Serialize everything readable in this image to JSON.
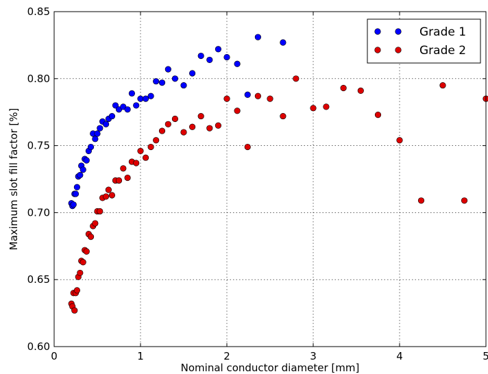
{
  "chart_data": {
    "type": "scatter",
    "title": "",
    "xlabel": "Nominal conductor diameter [mm]",
    "ylabel": "Maximum slot fill factor [%]",
    "xlim": [
      0,
      5
    ],
    "ylim": [
      0.6,
      0.85
    ],
    "xticks": [
      "0",
      "1",
      "2",
      "3",
      "4",
      "5"
    ],
    "yticks": [
      "0.60",
      "0.65",
      "0.70",
      "0.75",
      "0.80",
      "0.85"
    ],
    "grid": true,
    "legend_position": "top-right",
    "series": [
      {
        "name": "Grade 1",
        "color": "#0000ff",
        "points": [
          [
            0.2,
            0.707
          ],
          [
            0.212,
            0.705
          ],
          [
            0.224,
            0.706
          ],
          [
            0.236,
            0.714
          ],
          [
            0.25,
            0.714
          ],
          [
            0.265,
            0.719
          ],
          [
            0.28,
            0.727
          ],
          [
            0.3,
            0.728
          ],
          [
            0.315,
            0.735
          ],
          [
            0.335,
            0.732
          ],
          [
            0.355,
            0.74
          ],
          [
            0.375,
            0.739
          ],
          [
            0.4,
            0.746
          ],
          [
            0.425,
            0.749
          ],
          [
            0.45,
            0.759
          ],
          [
            0.475,
            0.755
          ],
          [
            0.5,
            0.759
          ],
          [
            0.53,
            0.763
          ],
          [
            0.56,
            0.768
          ],
          [
            0.6,
            0.766
          ],
          [
            0.63,
            0.77
          ],
          [
            0.67,
            0.772
          ],
          [
            0.71,
            0.78
          ],
          [
            0.75,
            0.777
          ],
          [
            0.8,
            0.779
          ],
          [
            0.85,
            0.777
          ],
          [
            0.9,
            0.789
          ],
          [
            0.95,
            0.78
          ],
          [
            1.0,
            0.785
          ],
          [
            1.06,
            0.785
          ],
          [
            1.12,
            0.787
          ],
          [
            1.18,
            0.798
          ],
          [
            1.25,
            0.797
          ],
          [
            1.32,
            0.807
          ],
          [
            1.4,
            0.8
          ],
          [
            1.5,
            0.795
          ],
          [
            1.6,
            0.804
          ],
          [
            1.7,
            0.817
          ],
          [
            1.8,
            0.814
          ],
          [
            1.9,
            0.822
          ],
          [
            2.0,
            0.816
          ],
          [
            2.12,
            0.811
          ],
          [
            2.24,
            0.788
          ],
          [
            2.36,
            0.831
          ],
          [
            2.65,
            0.827
          ]
        ]
      },
      {
        "name": "Grade 2",
        "color": "#dd0000",
        "points": [
          [
            0.2,
            0.632
          ],
          [
            0.212,
            0.63
          ],
          [
            0.224,
            0.64
          ],
          [
            0.236,
            0.627
          ],
          [
            0.25,
            0.64
          ],
          [
            0.265,
            0.642
          ],
          [
            0.28,
            0.652
          ],
          [
            0.3,
            0.655
          ],
          [
            0.315,
            0.664
          ],
          [
            0.335,
            0.663
          ],
          [
            0.355,
            0.672
          ],
          [
            0.375,
            0.671
          ],
          [
            0.4,
            0.684
          ],
          [
            0.425,
            0.682
          ],
          [
            0.45,
            0.69
          ],
          [
            0.475,
            0.692
          ],
          [
            0.5,
            0.701
          ],
          [
            0.53,
            0.701
          ],
          [
            0.56,
            0.711
          ],
          [
            0.6,
            0.712
          ],
          [
            0.63,
            0.717
          ],
          [
            0.67,
            0.713
          ],
          [
            0.71,
            0.724
          ],
          [
            0.75,
            0.724
          ],
          [
            0.8,
            0.733
          ],
          [
            0.85,
            0.726
          ],
          [
            0.9,
            0.738
          ],
          [
            0.95,
            0.737
          ],
          [
            1.0,
            0.746
          ],
          [
            1.06,
            0.741
          ],
          [
            1.12,
            0.749
          ],
          [
            1.18,
            0.754
          ],
          [
            1.25,
            0.761
          ],
          [
            1.32,
            0.766
          ],
          [
            1.4,
            0.77
          ],
          [
            1.5,
            0.76
          ],
          [
            1.6,
            0.764
          ],
          [
            1.7,
            0.772
          ],
          [
            1.8,
            0.763
          ],
          [
            1.9,
            0.765
          ],
          [
            2.0,
            0.785
          ],
          [
            2.12,
            0.776
          ],
          [
            2.24,
            0.749
          ],
          [
            2.36,
            0.787
          ],
          [
            2.5,
            0.785
          ],
          [
            2.65,
            0.772
          ],
          [
            2.8,
            0.8
          ],
          [
            3.0,
            0.778
          ],
          [
            3.15,
            0.779
          ],
          [
            3.35,
            0.793
          ],
          [
            3.55,
            0.791
          ],
          [
            3.75,
            0.773
          ],
          [
            4.0,
            0.754
          ],
          [
            4.25,
            0.709
          ],
          [
            4.5,
            0.795
          ],
          [
            4.75,
            0.709
          ],
          [
            5.0,
            0.785
          ]
        ]
      }
    ]
  }
}
